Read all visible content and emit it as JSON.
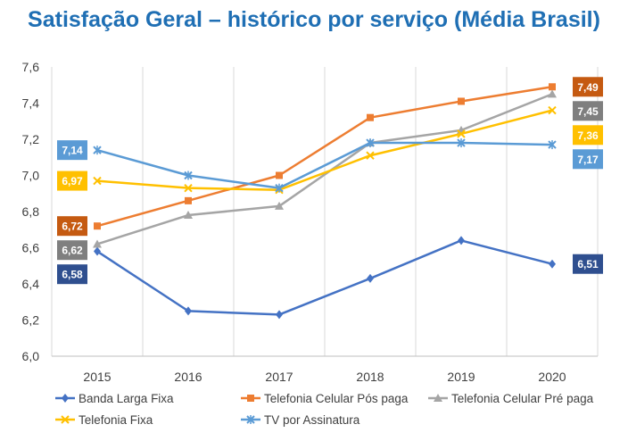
{
  "chart_data": {
    "type": "line",
    "title": "Satisfação Geral – histórico por serviço (Média Brasil)",
    "xlabel": "",
    "ylabel": "",
    "x": [
      "2015",
      "2016",
      "2017",
      "2018",
      "2019",
      "2020"
    ],
    "ylim": [
      6.0,
      7.6
    ],
    "yticks": [
      "6,0",
      "6,2",
      "6,4",
      "6,6",
      "6,8",
      "7,0",
      "7,2",
      "7,4",
      "7,6"
    ],
    "grid": "vertical",
    "legend_position": "bottom",
    "series": [
      {
        "name": "Banda Larga Fixa",
        "color": "#4472c4",
        "marker": "diamond",
        "values": [
          6.58,
          6.25,
          6.23,
          6.43,
          6.64,
          6.51
        ],
        "start_label": "6,58",
        "end_label": "6,51",
        "label_color": "#2f4f8f"
      },
      {
        "name": "Telefonia Celular Pós paga",
        "color": "#ed7d31",
        "marker": "square",
        "values": [
          6.72,
          6.86,
          7.0,
          7.32,
          7.41,
          7.49
        ],
        "start_label": "6,72",
        "end_label": "7,49",
        "label_color": "#c55a11"
      },
      {
        "name": "Telefonia Celular Pré paga",
        "color": "#a5a5a5",
        "marker": "triangle",
        "values": [
          6.62,
          6.78,
          6.83,
          7.18,
          7.25,
          7.45
        ],
        "start_label": "6,62",
        "end_label": "7,45",
        "label_color": "#7f7f7f"
      },
      {
        "name": "Telefonia Fixa",
        "color": "#ffc000",
        "marker": "x",
        "values": [
          6.97,
          6.93,
          6.92,
          7.11,
          7.23,
          7.36
        ],
        "start_label": "6,97",
        "end_label": "7,36",
        "label_color": "#ffc000"
      },
      {
        "name": "TV por Assinatura",
        "color": "#5b9bd5",
        "marker": "xbar",
        "values": [
          7.14,
          7.0,
          6.93,
          7.18,
          7.18,
          7.17
        ],
        "start_label": "7,14",
        "end_label": "7,17",
        "label_color": "#5b9bd5"
      }
    ]
  }
}
